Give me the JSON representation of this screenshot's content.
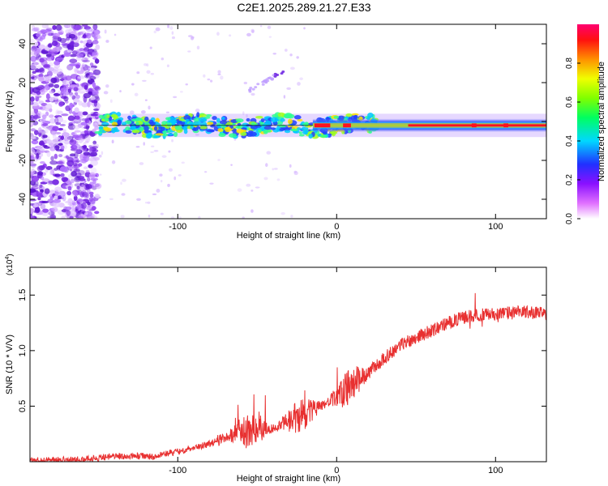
{
  "title": "C2E1.2025.289.21.27.E33",
  "chart_data": [
    {
      "type": "heatmap",
      "xlabel": "Height of straight line (km)",
      "ylabel": "Frequency (Hz)",
      "xlim": [
        -193,
        132
      ],
      "ylim": [
        -50,
        50
      ],
      "xticks": [
        "-100",
        "0",
        "100"
      ],
      "xtick_values": [
        -100,
        0,
        100
      ],
      "yticks": [
        "-40",
        "-20",
        "0",
        "20",
        "40"
      ],
      "ytick_values": [
        -40,
        -20,
        0,
        20,
        40
      ],
      "colorbar": {
        "label": "Normalized spectral amplitude",
        "range": [
          0,
          1
        ],
        "ticks": [
          "0.0",
          "0.2",
          "0.4",
          "0.6",
          "0.8"
        ],
        "tick_values": [
          0.0,
          0.2,
          0.4,
          0.6,
          0.8
        ],
        "colors": [
          "#ffffff",
          "#d080ff",
          "#8000e0",
          "#2020ff",
          "#00d0ff",
          "#00ff80",
          "#80ff00",
          "#ffff00",
          "#ff8000",
          "#ff0000",
          "#ff0080"
        ]
      },
      "features": {
        "noise_region_x": [
          -193,
          -150
        ],
        "main_band_x": [
          -150,
          132
        ],
        "main_band_freq": -2,
        "strong_segment_x": [
          -15,
          132
        ],
        "diagonal_streak": {
          "x": [
            -55,
            -33
          ],
          "freq": [
            16,
            26
          ]
        }
      }
    },
    {
      "type": "line",
      "xlabel": "Height of straight line (km)",
      "ylabel": "SNR (10 * V/V)",
      "exponent_label": "(x10",
      "exponent_power": "4",
      "exponent_close": ")",
      "xlim": [
        -193,
        132
      ],
      "ylim": [
        0,
        1.75
      ],
      "xticks": [
        "-100",
        "0",
        "100"
      ],
      "xtick_values": [
        -100,
        0,
        100
      ],
      "yticks": [
        "0.5",
        "1.0",
        "1.5"
      ],
      "ytick_values": [
        0.5,
        1.0,
        1.5
      ],
      "color": "#e83030",
      "series_envelope": {
        "x": [
          -193,
          -160,
          -140,
          -115,
          -100,
          -90,
          -80,
          -70,
          -60,
          -50,
          -40,
          -30,
          -20,
          -10,
          0,
          10,
          20,
          30,
          40,
          50,
          60,
          70,
          80,
          90,
          100,
          110,
          120,
          132
        ],
        "y": [
          0.01,
          0.02,
          0.05,
          0.05,
          0.09,
          0.13,
          0.16,
          0.22,
          0.27,
          0.28,
          0.3,
          0.36,
          0.42,
          0.5,
          0.58,
          0.7,
          0.8,
          0.93,
          1.05,
          1.12,
          1.18,
          1.25,
          1.3,
          1.32,
          1.33,
          1.34,
          1.35,
          1.33
        ]
      }
    }
  ]
}
